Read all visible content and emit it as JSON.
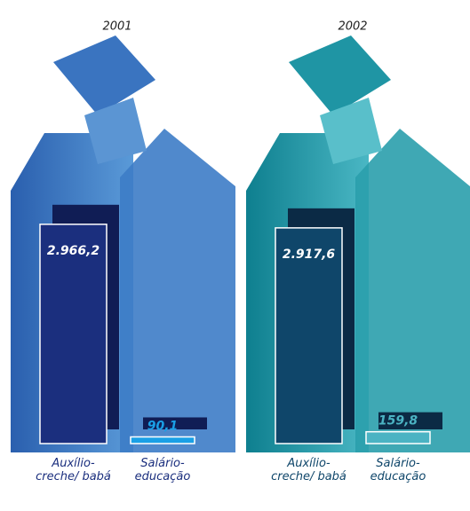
{
  "chart_data": [
    {
      "type": "bar",
      "title": "2001",
      "categories": [
        "Auxílio-creche/ babá",
        "Salário-educação"
      ],
      "values": [
        2966.2,
        90.1
      ],
      "value_labels": [
        "2.966,2",
        "90,1"
      ],
      "colors": [
        "#1b2f7e",
        "#1aa0e6"
      ],
      "ylim": [
        0,
        3000
      ]
    },
    {
      "type": "bar",
      "title": "2002",
      "categories": [
        "Auxílio-creche/ babá",
        "Salário-educação"
      ],
      "values": [
        2917.6,
        159.8
      ],
      "value_labels": [
        "2.917,6",
        "159,8"
      ],
      "colors": [
        "#0f466a",
        "#4bb3c3"
      ],
      "ylim": [
        0,
        3000
      ]
    }
  ]
}
